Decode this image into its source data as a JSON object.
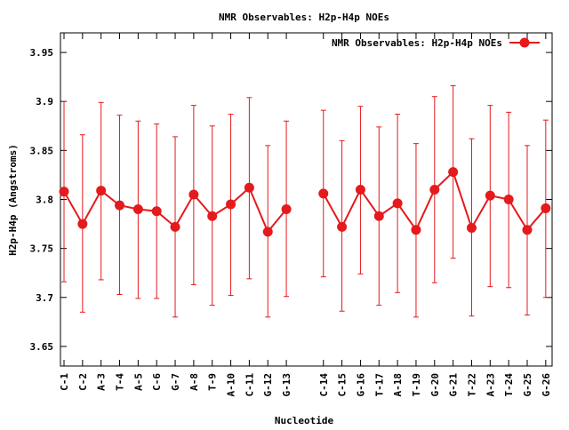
{
  "chart_data": {
    "type": "line",
    "title": "NMR Observables: H2p-H4p NOEs",
    "xlabel": "Nucleotide",
    "ylabel": "H2p-H4p (Angstroms)",
    "ylim": [
      3.63,
      3.97
    ],
    "yticks": [
      3.65,
      3.7,
      3.75,
      3.8,
      3.85,
      3.9,
      3.95
    ],
    "grid": false,
    "legend_position": "top-right",
    "color": "#e41a1c",
    "series": [
      {
        "name": "NMR Observables: H2p-H4p NOEs",
        "segments": [
          [
            {
              "label": "C-1",
              "y": 3.808,
              "low": 3.716,
              "high": 3.9
            },
            {
              "label": "C-2",
              "y": 3.775,
              "low": 3.685,
              "high": 3.866
            },
            {
              "label": "A-3",
              "y": 3.809,
              "low": 3.718,
              "high": 3.899
            },
            {
              "label": "T-4",
              "y": 3.794,
              "low": 3.703,
              "high": 3.886
            },
            {
              "label": "A-5",
              "y": 3.79,
              "low": 3.699,
              "high": 3.88
            },
            {
              "label": "C-6",
              "y": 3.788,
              "low": 3.699,
              "high": 3.877
            },
            {
              "label": "G-7",
              "y": 3.772,
              "low": 3.68,
              "high": 3.864
            },
            {
              "label": "A-8",
              "y": 3.805,
              "low": 3.713,
              "high": 3.896
            },
            {
              "label": "T-9",
              "y": 3.783,
              "low": 3.692,
              "high": 3.875
            },
            {
              "label": "A-10",
              "y": 3.795,
              "low": 3.702,
              "high": 3.887
            },
            {
              "label": "C-11",
              "y": 3.812,
              "low": 3.719,
              "high": 3.904
            },
            {
              "label": "G-12",
              "y": 3.767,
              "low": 3.68,
              "high": 3.855
            },
            {
              "label": "G-13",
              "y": 3.79,
              "low": 3.701,
              "high": 3.88
            }
          ],
          [
            {
              "label": "C-14",
              "y": 3.806,
              "low": 3.721,
              "high": 3.891
            },
            {
              "label": "C-15",
              "y": 3.772,
              "low": 3.686,
              "high": 3.86
            },
            {
              "label": "G-16",
              "y": 3.81,
              "low": 3.724,
              "high": 3.895
            },
            {
              "label": "T-17",
              "y": 3.783,
              "low": 3.692,
              "high": 3.874
            },
            {
              "label": "A-18",
              "y": 3.796,
              "low": 3.705,
              "high": 3.887
            },
            {
              "label": "T-19",
              "y": 3.769,
              "low": 3.68,
              "high": 3.857
            },
            {
              "label": "G-20",
              "y": 3.81,
              "low": 3.715,
              "high": 3.905
            },
            {
              "label": "G-21",
              "y": 3.828,
              "low": 3.74,
              "high": 3.916
            },
            {
              "label": "T-22",
              "y": 3.771,
              "low": 3.681,
              "high": 3.862
            },
            {
              "label": "A-23",
              "y": 3.804,
              "low": 3.711,
              "high": 3.896
            },
            {
              "label": "T-24",
              "y": 3.8,
              "low": 3.71,
              "high": 3.889
            },
            {
              "label": "G-25",
              "y": 3.769,
              "low": 3.682,
              "high": 3.855
            },
            {
              "label": "G-26",
              "y": 3.791,
              "low": 3.7,
              "high": 3.881
            }
          ]
        ]
      }
    ]
  }
}
